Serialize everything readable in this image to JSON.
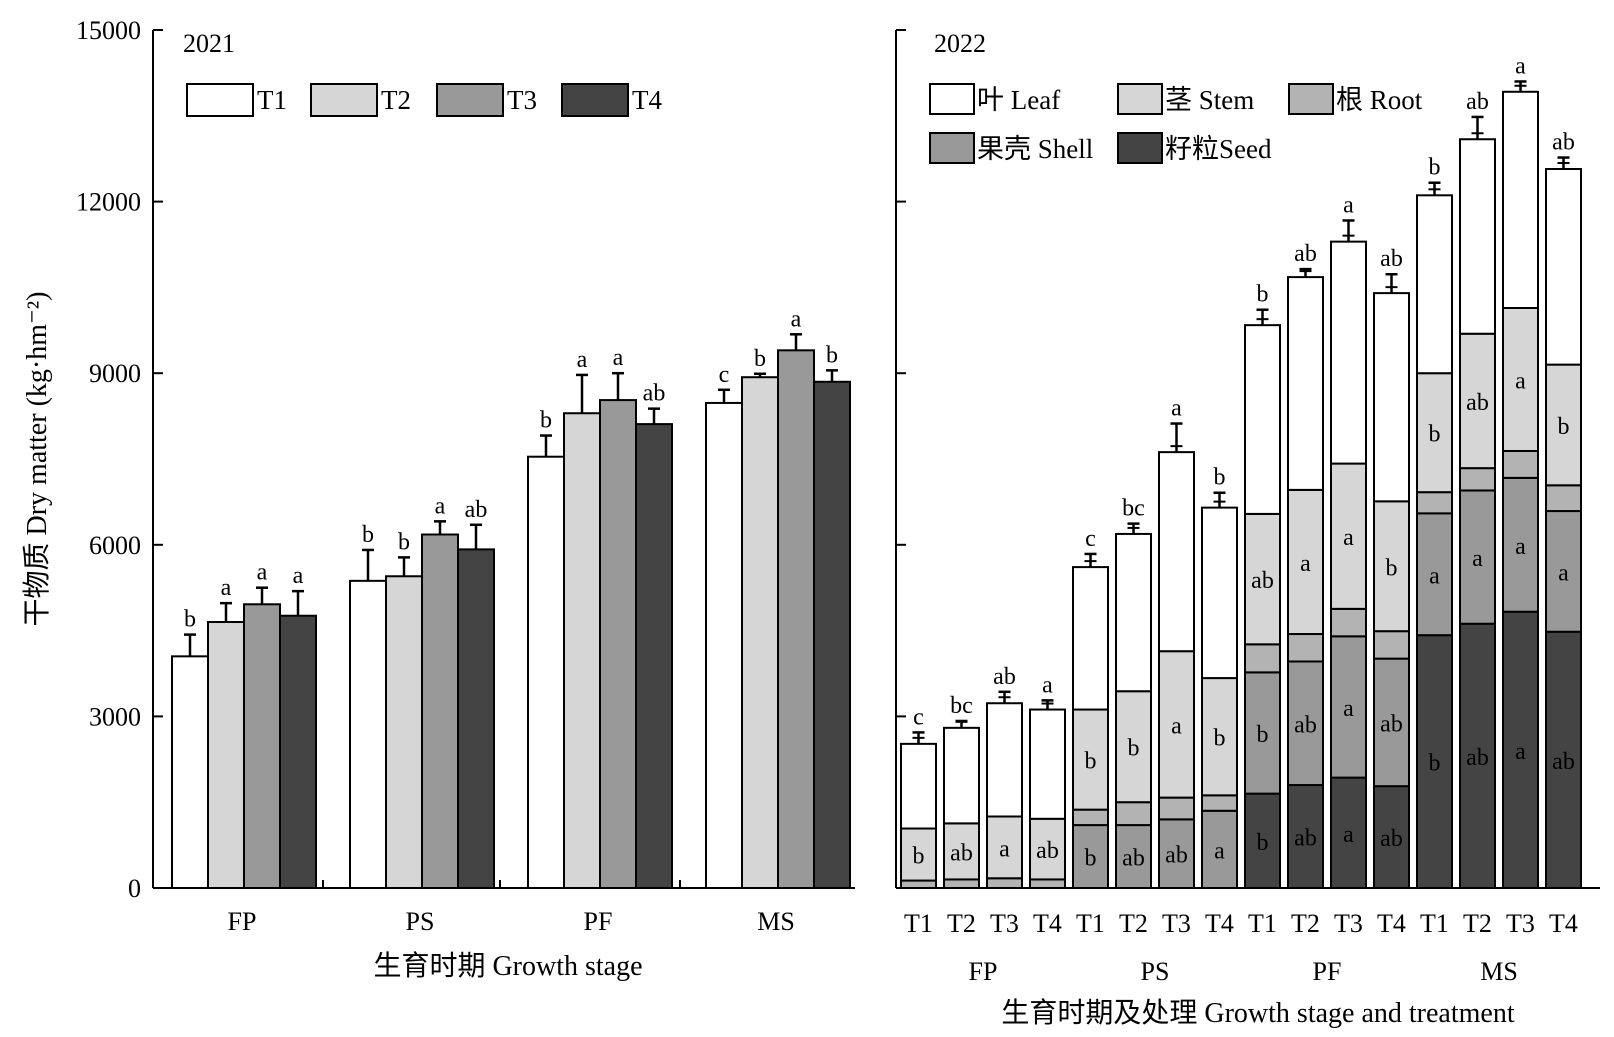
{
  "chart_data": [
    {
      "type": "bar",
      "panel": "2021",
      "title": "2021",
      "ylabel": "干物质 Dry matter (kg·hm⁻²)",
      "xlabel": "生育时期 Growth stage",
      "ylim": [
        0,
        15000
      ],
      "yticks": [
        0,
        3000,
        6000,
        9000,
        12000,
        15000
      ],
      "categories": [
        "FP",
        "PS",
        "PF",
        "MS"
      ],
      "legend": "top-left",
      "series": [
        {
          "name": "T1",
          "color": "#ffffff",
          "values": [
            4050,
            5370,
            7540,
            8480
          ],
          "errors": [
            380,
            540,
            370,
            230
          ],
          "labels": [
            "b",
            "b",
            "b",
            "c"
          ]
        },
        {
          "name": "T2",
          "color": "#d6d6d6",
          "values": [
            4650,
            5450,
            8300,
            8930
          ],
          "errors": [
            330,
            330,
            670,
            60
          ],
          "labels": [
            "a",
            "b",
            "a",
            "b"
          ]
        },
        {
          "name": "T3",
          "color": "#999999",
          "values": [
            4960,
            6180,
            8530,
            9400
          ],
          "errors": [
            290,
            230,
            470,
            280
          ],
          "labels": [
            "a",
            "a",
            "a",
            "a"
          ]
        },
        {
          "name": "T4",
          "color": "#444444",
          "values": [
            4760,
            5920,
            8110,
            8850
          ],
          "errors": [
            430,
            430,
            270,
            200
          ],
          "labels": [
            "a",
            "ab",
            "ab",
            "b"
          ]
        }
      ]
    },
    {
      "type": "stacked-bar",
      "panel": "2022",
      "title": "2022",
      "xlabel": "生育时期及处理 Growth stage and treatment",
      "ylim": [
        0,
        15000
      ],
      "groups": [
        "FP",
        "PS",
        "PF",
        "MS"
      ],
      "treatments": [
        "T1",
        "T2",
        "T3",
        "T4"
      ],
      "legend": "top-left",
      "series": [
        {
          "name": "籽粒Seed",
          "color": "#444444",
          "values": [
            [
              0,
              0,
              0,
              0
            ],
            [
              0,
              0,
              0,
              0
            ],
            [
              1650,
              1800,
              1930,
              1780
            ],
            [
              4420,
              4620,
              4830,
              4480
            ]
          ],
          "labels": [
            [
              "",
              "",
              "",
              ""
            ],
            [
              "",
              "",
              "",
              ""
            ],
            [
              "b",
              "ab",
              "a",
              "ab"
            ],
            [
              "b",
              "ab",
              "a",
              "ab"
            ]
          ]
        },
        {
          "name": "果壳 Shell",
          "color": "#999999",
          "values": [
            [
              0,
              0,
              0,
              0
            ],
            [
              1100,
              1100,
              1200,
              1350
            ],
            [
              2120,
              2160,
              2470,
              2230
            ],
            [
              2130,
              2330,
              2340,
              2110
            ]
          ],
          "labels": [
            [
              "",
              "",
              "",
              ""
            ],
            [
              "b",
              "ab",
              "ab",
              "a"
            ],
            [
              "b",
              "ab",
              "a",
              "ab"
            ],
            [
              "a",
              "a",
              "a",
              "a"
            ]
          ]
        },
        {
          "name": "根 Root",
          "color": "#b3b3b3",
          "values": [
            [
              130,
              150,
              170,
              150
            ],
            [
              270,
              400,
              380,
              270
            ],
            [
              490,
              480,
              480,
              480
            ],
            [
              370,
              390,
              470,
              450
            ]
          ],
          "labels": [
            [
              "",
              "",
              "",
              ""
            ],
            [
              "",
              "",
              "",
              ""
            ],
            [
              "",
              "",
              "",
              ""
            ],
            [
              "",
              "",
              "",
              ""
            ]
          ]
        },
        {
          "name": "茎 Stem",
          "color": "#d6d6d6",
          "values": [
            [
              910,
              980,
              1080,
              1060
            ],
            [
              1750,
              1940,
              2560,
              2050
            ],
            [
              2280,
              2520,
              2540,
              2270
            ],
            [
              2080,
              2350,
              2500,
              2110
            ]
          ],
          "labels": [
            [
              "b",
              "ab",
              "a",
              "ab"
            ],
            [
              "b",
              "b",
              "a",
              "b"
            ],
            [
              "ab",
              "a",
              "a",
              "b"
            ],
            [
              "b",
              "ab",
              "a",
              "b"
            ]
          ]
        },
        {
          "name": "叶 Leaf",
          "color": "#ffffff",
          "values": [
            [
              1480,
              1670,
              1980,
              1910
            ],
            [
              2490,
              2750,
              3480,
              2980
            ],
            [
              3300,
              3720,
              3880,
              3640
            ],
            [
              3110,
              3400,
              3780,
              3420
            ]
          ],
          "labels": [
            [
              "c",
              "bc",
              "ab",
              "a"
            ],
            [
              "c",
              "bc",
              "a",
              "b"
            ],
            [
              "b",
              "ab",
              "a",
              "ab"
            ],
            [
              "b",
              "ab",
              "a",
              "ab"
            ]
          ]
        }
      ],
      "totals_errors": [
        [
          200,
          120,
          200,
          160
        ],
        [
          230,
          180,
          500,
          260
        ],
        [
          270,
          140,
          370,
          330
        ],
        [
          220,
          390,
          180,
          200
        ]
      ],
      "legend_order": [
        "叶 Leaf",
        "茎 Stem",
        "根 Root",
        "果壳 Shell",
        "籽粒Seed"
      ]
    }
  ]
}
